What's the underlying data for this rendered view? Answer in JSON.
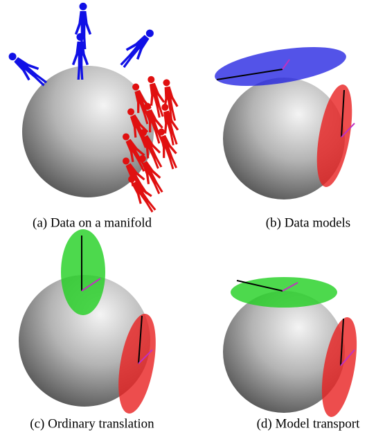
{
  "subfigures": [
    {
      "caption": "(a) Data on a manifold"
    },
    {
      "caption": "(b) Data models"
    },
    {
      "caption": "(c) Ordinary translation"
    },
    {
      "caption": "(d) Model transport"
    }
  ]
}
